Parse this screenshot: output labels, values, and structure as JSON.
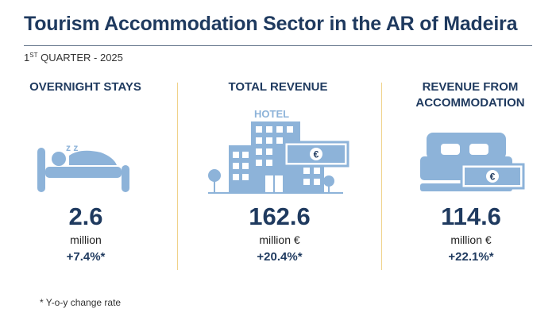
{
  "title": "Tourism Accommodation Sector in the AR of Madeira",
  "subtitle": {
    "ordinal_number": "1",
    "ordinal_suffix": "ST",
    "rest": " QUARTER - 2025"
  },
  "panels": [
    {
      "heading": "OVERNIGHT STAYS",
      "icon": "sleeping-person-in-bed-icon",
      "sleep_text": "z z",
      "value": "2.6",
      "unit": "million",
      "change": "+7.4%*"
    },
    {
      "heading": "TOTAL REVENUE",
      "icon": "hotel-building-with-euro-banknote-icon",
      "hotel_sign": "HOTEL",
      "currency_symbol": "€",
      "value": "162.6",
      "unit": "million €",
      "change": "+20.4%*"
    },
    {
      "heading_line1": "REVENUE FROM",
      "heading_line2": "ACCOMMODATION",
      "icon": "double-bed-with-euro-banknote-icon",
      "currency_symbol": "€",
      "value": "114.6",
      "unit": "million €",
      "change": "+22.1%*"
    }
  ],
  "footnote": "* Y-o-y change rate",
  "colors": {
    "heading": "#1f3a5f",
    "icon": "#8db3d9",
    "divider": "#f0d28a",
    "rule": "#6a7b8f"
  }
}
